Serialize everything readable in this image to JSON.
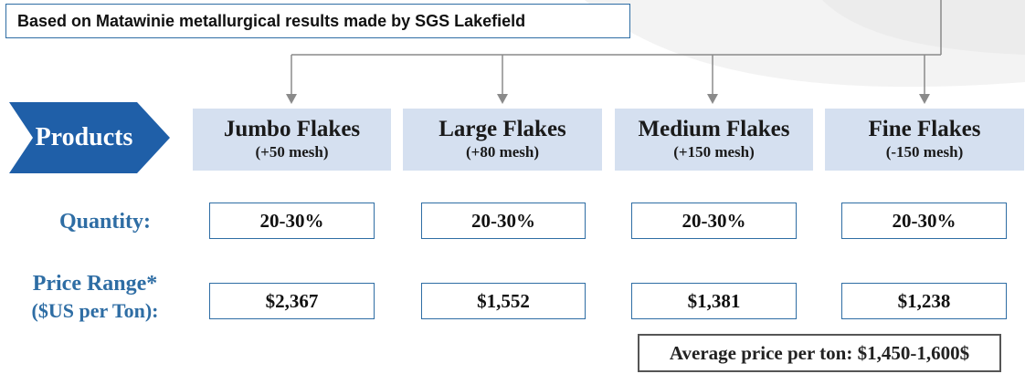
{
  "header": {
    "text": "Based on Matawinie metallurgical results made by SGS Lakefield"
  },
  "products_label": "Products",
  "columns": [
    {
      "name": "Jumbo Flakes",
      "mesh": "(+50 mesh)",
      "quantity": "20-30%",
      "price": "$2,367"
    },
    {
      "name": "Large Flakes",
      "mesh": "(+80 mesh)",
      "quantity": "20-30%",
      "price": "$1,552"
    },
    {
      "name": "Medium Flakes",
      "mesh": "(+150 mesh)",
      "quantity": "20-30%",
      "price": "$1,381"
    },
    {
      "name": "Fine Flakes",
      "mesh": "(-150 mesh)",
      "quantity": "20-30%",
      "price": "$1,238"
    }
  ],
  "rows": {
    "quantity_label": "Quantity:",
    "price_label_line1": "Price Range*",
    "price_label_line2": "($US per Ton):"
  },
  "average": {
    "text": "Average price per ton: $1,450-1,600$"
  },
  "colors": {
    "accent": "#2e6da4",
    "header_fill": "#d5e0f0",
    "tag_fill": "#1f5fa8",
    "connector": "#8a8a8a"
  }
}
